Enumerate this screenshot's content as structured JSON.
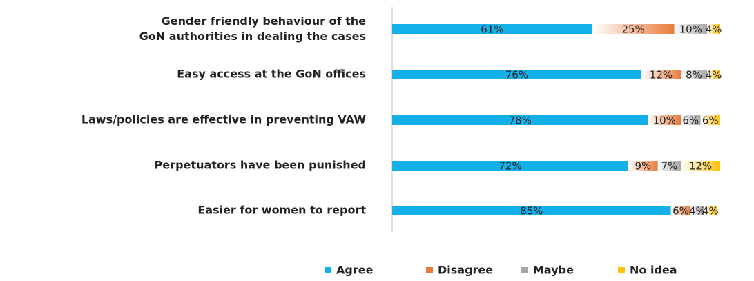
{
  "chart_data": {
    "type": "stacked-bar-horizontal",
    "categories": [
      "Gender friendly behaviour of the GoN authorities in dealing the cases",
      "Easy access at the GoN offices",
      "Laws/policies are effective in preventing VAW",
      "Perpetuators have been punished",
      "Easier for women to report"
    ],
    "series": [
      {
        "name": "Agree",
        "color": "#14b0ea",
        "values": [
          61,
          76,
          78,
          72,
          85
        ],
        "value_labels": [
          "61%",
          "76%",
          "78%",
          "72%",
          "85%"
        ]
      },
      {
        "name": "Disagree",
        "color": "#e97a3b",
        "values": [
          25,
          12,
          10,
          9,
          6
        ],
        "value_labels": [
          "25%",
          "12%",
          "10%",
          "9%",
          "6%"
        ]
      },
      {
        "name": "Maybe",
        "color": "#a5a5a5",
        "values": [
          10,
          8,
          6,
          7,
          4
        ],
        "value_labels": [
          "10%",
          "8%",
          "6%",
          "7%",
          "4%"
        ]
      },
      {
        "name": "No idea",
        "color": "#ffc20e",
        "values": [
          4,
          4,
          6,
          12,
          4
        ],
        "value_labels": [
          "4%",
          "4%",
          "6%",
          "12%",
          "4%"
        ]
      }
    ],
    "xlim": [
      0,
      100
    ],
    "legend": "bottom"
  }
}
